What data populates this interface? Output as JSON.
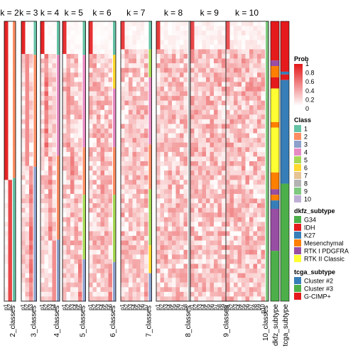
{
  "chart_data": {
    "type": "heatmap",
    "panel_titles": [
      "k = 2",
      "k = 3",
      "k = 4",
      "k = 5",
      "k = 6",
      "k = 7",
      "k = 8",
      "k = 9",
      "k = 10"
    ],
    "bottom_labels": [
      "2_classes",
      "3_classes",
      "4_classes",
      "5_classes",
      "6_classes",
      "7_classes",
      "8_classes",
      "9_classes",
      "10_classes"
    ],
    "column_prefix": "p",
    "annotation_labels": [
      "dkfz_subtype",
      "tcga_subtype"
    ],
    "prob_legend": {
      "title": "Prob",
      "ticks": [
        "1",
        "0.8",
        "0.6",
        "0.4",
        "0.2",
        "0"
      ],
      "colors": [
        "#FFFFFF",
        "#FCCEC5",
        "#F9A08C",
        "#F57256",
        "#F0431F",
        "#E41A1C"
      ]
    },
    "class_legend": {
      "title": "Class",
      "items": [
        {
          "label": "1",
          "color": "#66C2A5"
        },
        {
          "label": "2",
          "color": "#FC8D62"
        },
        {
          "label": "3",
          "color": "#8DA0CB"
        },
        {
          "label": "4",
          "color": "#E78AC3"
        },
        {
          "label": "5",
          "color": "#A6D854"
        },
        {
          "label": "6",
          "color": "#FFD92F"
        },
        {
          "label": "7",
          "color": "#E5C494"
        },
        {
          "label": "8",
          "color": "#B3B3B3"
        },
        {
          "label": "9",
          "color": "#7FC97F"
        },
        {
          "label": "10",
          "color": "#BEAED4"
        }
      ]
    },
    "dkfz_legend": {
      "title": "dkfz_subtype",
      "items": [
        {
          "label": "G34",
          "color": "#4DAF4A"
        },
        {
          "label": "IDH",
          "color": "#E41A1C"
        },
        {
          "label": "K27",
          "color": "#377EB8"
        },
        {
          "label": "Mesenchymal",
          "color": "#FF7F00"
        },
        {
          "label": "RTK I PDGFRA",
          "color": "#984EA3"
        },
        {
          "label": "RTK II Classic",
          "color": "#FFFF33"
        }
      ]
    },
    "tcga_legend": {
      "title": "tcga_subtype",
      "items": [
        {
          "label": "Cluster #2",
          "color": "#377EB8"
        },
        {
          "label": "Cluster #3",
          "color": "#4DAF4A"
        },
        {
          "label": "G-CIMP+",
          "color": "#E41A1C"
        }
      ]
    },
    "dkfz_segments": [
      {
        "from": 0.0,
        "to": 0.14,
        "color": "#E41A1C"
      },
      {
        "from": 0.14,
        "to": 0.16,
        "color": "#984EA3"
      },
      {
        "from": 0.16,
        "to": 0.2,
        "color": "#FF7F00"
      },
      {
        "from": 0.2,
        "to": 0.24,
        "color": "#E41A1C"
      },
      {
        "from": 0.24,
        "to": 0.36,
        "color": "#FFFF33"
      },
      {
        "from": 0.36,
        "to": 0.38,
        "color": "#FF7F00"
      },
      {
        "from": 0.38,
        "to": 0.54,
        "color": "#FFFF33"
      },
      {
        "from": 0.54,
        "to": 0.6,
        "color": "#FF7F00"
      },
      {
        "from": 0.6,
        "to": 0.62,
        "color": "#984EA3"
      },
      {
        "from": 0.62,
        "to": 0.64,
        "color": "#FF7F00"
      },
      {
        "from": 0.64,
        "to": 0.67,
        "color": "#377EB8"
      },
      {
        "from": 0.67,
        "to": 0.82,
        "color": "#984EA3"
      },
      {
        "from": 0.82,
        "to": 1.0,
        "color": "#4DAF4A"
      }
    ],
    "tcga_segments": [
      {
        "from": 0.0,
        "to": 0.18,
        "color": "#E41A1C"
      },
      {
        "from": 0.18,
        "to": 0.19,
        "color": "#377EB8"
      },
      {
        "from": 0.19,
        "to": 0.21,
        "color": "#E41A1C"
      },
      {
        "from": 0.21,
        "to": 0.58,
        "color": "#377EB8"
      },
      {
        "from": 0.58,
        "to": 1.0,
        "color": "#4DAF4A"
      }
    ],
    "panels": [
      {
        "bands": [
          {
            "to": 0.56,
            "p": 0.95
          },
          {
            "to": 1.0,
            "p": 0.8
          }
        ],
        "classes": [
          {
            "to": 0.56,
            "color": "#FC8D62"
          },
          {
            "to": 1.0,
            "color": "#66C2A5"
          }
        ]
      },
      {
        "bands": [
          {
            "to": 0.12,
            "p": 0.95
          },
          {
            "to": 0.52,
            "p": 0.5
          },
          {
            "to": 1.0,
            "p": 0.4
          }
        ],
        "classes": [
          {
            "to": 0.12,
            "color": "#66C2A5"
          },
          {
            "to": 0.52,
            "color": "#FC8D62"
          },
          {
            "to": 1.0,
            "color": "#8DA0CB"
          }
        ]
      },
      {
        "bands": [
          {
            "to": 0.12,
            "p": 0.95
          },
          {
            "to": 0.48,
            "p": 0.4
          },
          {
            "to": 0.78,
            "p": 0.35
          },
          {
            "to": 1.0,
            "p": 0.5
          }
        ],
        "classes": [
          {
            "to": 0.12,
            "color": "#66C2A5"
          },
          {
            "to": 0.48,
            "color": "#E78AC3"
          },
          {
            "to": 0.78,
            "color": "#FC8D62"
          },
          {
            "to": 1.0,
            "color": "#8DA0CB"
          }
        ]
      },
      {
        "bands": [
          {
            "to": 0.12,
            "p": 0.9
          },
          {
            "to": 0.45,
            "p": 0.25
          },
          {
            "to": 0.62,
            "p": 0.3
          },
          {
            "to": 0.85,
            "p": 0.2
          },
          {
            "to": 1.0,
            "p": 0.35
          }
        ],
        "classes": [
          {
            "to": 0.12,
            "color": "#66C2A5"
          },
          {
            "to": 0.45,
            "color": "#E78AC3"
          },
          {
            "to": 0.62,
            "color": "#FC8D62"
          },
          {
            "to": 0.85,
            "color": "#A6D854"
          },
          {
            "to": 1.0,
            "color": "#8DA0CB"
          }
        ]
      },
      {
        "bands": [
          {
            "to": 0.12,
            "p": 0.9
          },
          {
            "to": 0.24,
            "p": 0.2
          },
          {
            "to": 0.45,
            "p": 0.2
          },
          {
            "to": 0.62,
            "p": 0.25
          },
          {
            "to": 0.86,
            "p": 0.2
          },
          {
            "to": 1.0,
            "p": 0.3
          }
        ],
        "classes": [
          {
            "to": 0.12,
            "color": "#66C2A5"
          },
          {
            "to": 0.24,
            "color": "#FFD92F"
          },
          {
            "to": 0.45,
            "color": "#E78AC3"
          },
          {
            "to": 0.62,
            "color": "#FC8D62"
          },
          {
            "to": 0.86,
            "color": "#A6D854"
          },
          {
            "to": 1.0,
            "color": "#8DA0CB"
          }
        ]
      },
      {
        "bands": [
          {
            "to": 0.1,
            "p": 0.85
          },
          {
            "to": 0.2,
            "p": 0.2
          },
          {
            "to": 0.44,
            "p": 0.15
          },
          {
            "to": 0.6,
            "p": 0.2
          },
          {
            "to": 0.8,
            "p": 0.15
          },
          {
            "to": 0.9,
            "p": 0.2
          },
          {
            "to": 1.0,
            "p": 0.3
          }
        ],
        "classes": [
          {
            "to": 0.1,
            "color": "#66C2A5"
          },
          {
            "to": 0.2,
            "color": "#A6D854"
          },
          {
            "to": 0.44,
            "color": "#E78AC3"
          },
          {
            "to": 0.6,
            "color": "#FC8D62"
          },
          {
            "to": 0.8,
            "color": "#A6D854"
          },
          {
            "to": 0.9,
            "color": "#FFD92F"
          },
          {
            "to": 1.0,
            "color": "#8DA0CB"
          }
        ]
      },
      {
        "bands": [
          {
            "to": 0.1,
            "p": 0.85
          },
          {
            "to": 0.3,
            "p": 0.15
          },
          {
            "to": 0.5,
            "p": 0.15
          },
          {
            "to": 0.7,
            "p": 0.2
          },
          {
            "to": 0.88,
            "p": 0.15
          },
          {
            "to": 1.0,
            "p": 0.25
          }
        ],
        "classes": [
          {
            "to": 1.0,
            "color": "#B3B3B3"
          }
        ]
      },
      {
        "bands": [
          {
            "to": 0.1,
            "p": 0.8
          },
          {
            "to": 0.3,
            "p": 0.12
          },
          {
            "to": 0.5,
            "p": 0.12
          },
          {
            "to": 0.7,
            "p": 0.15
          },
          {
            "to": 0.88,
            "p": 0.12
          },
          {
            "to": 1.0,
            "p": 0.2
          }
        ],
        "classes": [
          {
            "to": 0.06,
            "color": "#66C2A5"
          },
          {
            "to": 0.3,
            "color": "#7FC97F"
          },
          {
            "to": 0.5,
            "color": "#E78AC3"
          },
          {
            "to": 0.7,
            "color": "#7FC97F"
          },
          {
            "to": 0.88,
            "color": "#66C2A5"
          },
          {
            "to": 1.0,
            "color": "#8DA0CB"
          }
        ]
      },
      {
        "bands": [
          {
            "to": 0.1,
            "p": 0.75
          },
          {
            "to": 0.3,
            "p": 0.1
          },
          {
            "to": 0.5,
            "p": 0.1
          },
          {
            "to": 0.7,
            "p": 0.12
          },
          {
            "to": 0.88,
            "p": 0.1
          },
          {
            "to": 1.0,
            "p": 0.18
          }
        ],
        "classes": [
          {
            "to": 1.0,
            "color": "#7FC97F"
          }
        ]
      }
    ]
  }
}
